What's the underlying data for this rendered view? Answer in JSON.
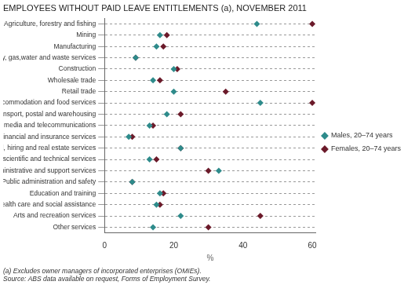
{
  "chart_data": {
    "type": "scatter",
    "orientation": "horizontal",
    "title": "EMPLOYEES WITHOUT PAID LEAVE ENTITLEMENTS (a), NOVEMBER 2011",
    "categories": [
      "Agriculture, forestry and fishing",
      "Mining",
      "Manufacturing",
      "Electricity, gas,water and waste services",
      "Construction",
      "Wholesale trade",
      "Retail trade",
      "Accommodation and food services",
      "Transport, postal and warehousing",
      "Information media and telecommunications",
      "Financial and insurance services",
      "Rental, hiring and real estate services",
      "Professional, scientific and technical services",
      "Administrative and support services",
      "Public administration and safety",
      "Education and training",
      "Health care and social assistance",
      "Arts and recreation services",
      "Other services"
    ],
    "series": [
      {
        "name": "Males, 20–74 years",
        "color": "#2E8B8B",
        "marker": "diamond",
        "values": [
          44,
          16,
          15,
          9,
          20,
          14,
          20,
          45,
          18,
          13,
          7,
          22,
          13,
          33,
          8,
          16,
          15,
          22,
          14
        ]
      },
      {
        "name": "Females, 20–74 years",
        "color": "#6B1A2A",
        "marker": "diamond",
        "values": [
          60,
          18,
          17,
          9,
          21,
          16,
          35,
          60,
          22,
          14,
          8,
          22,
          15,
          30,
          8,
          17,
          16,
          45,
          30
        ]
      }
    ],
    "xlabel": "%",
    "xlim": [
      0,
      61
    ],
    "xticks": [
      0,
      20,
      40,
      60
    ],
    "grid": "y",
    "legend": "right",
    "annotations": [
      "(a) Excludes owner managers of incorporated enterprises (OMIEs).",
      "Source: ABS data available on request, Forms of Employment Survey."
    ]
  }
}
